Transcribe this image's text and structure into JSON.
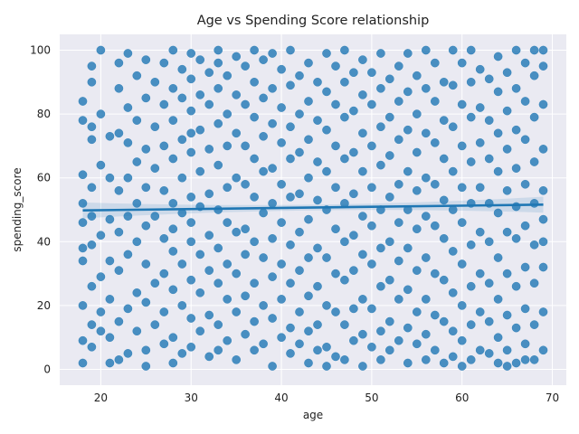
{
  "colors": {
    "background": "#ffffff",
    "plot_background": "#eaeaf2",
    "grid": "#ffffff",
    "points": "#1f77b4",
    "regression": "#1f77b4"
  },
  "chart_data": {
    "type": "scatter",
    "title": "Age vs Spending Score relationship",
    "xlabel": "age",
    "ylabel": "spending_score",
    "xlim": [
      15.45,
      71.55
    ],
    "ylim": [
      -4.95,
      104.95
    ],
    "xticks": [
      20,
      30,
      40,
      50,
      60,
      70
    ],
    "yticks": [
      0,
      20,
      40,
      60,
      80,
      100
    ],
    "grid": true,
    "legend": "none",
    "regression": {
      "x": [
        18,
        69
      ],
      "y": [
        49.8,
        51.6
      ],
      "ci_halfwidth_edge": 2.5,
      "ci_halfwidth_center": 0.9
    },
    "points": [
      [
        18,
        84
      ],
      [
        18,
        78
      ],
      [
        18,
        61
      ],
      [
        18,
        52
      ],
      [
        18,
        46
      ],
      [
        18,
        38
      ],
      [
        18,
        34
      ],
      [
        18,
        20
      ],
      [
        18,
        9
      ],
      [
        18,
        2
      ],
      [
        19,
        95
      ],
      [
        19,
        90
      ],
      [
        19,
        76
      ],
      [
        19,
        72
      ],
      [
        19,
        57
      ],
      [
        19,
        48
      ],
      [
        19,
        39
      ],
      [
        19,
        26
      ],
      [
        19,
        14
      ],
      [
        19,
        7
      ],
      [
        20,
        100
      ],
      [
        20,
        80
      ],
      [
        20,
        64
      ],
      [
        20,
        42
      ],
      [
        20,
        29
      ],
      [
        20,
        18
      ],
      [
        20,
        12
      ],
      [
        21,
        73
      ],
      [
        21,
        60
      ],
      [
        21,
        47
      ],
      [
        21,
        34
      ],
      [
        21,
        22
      ],
      [
        21,
        10
      ],
      [
        21,
        2
      ],
      [
        22,
        96
      ],
      [
        22,
        88
      ],
      [
        22,
        74
      ],
      [
        22,
        56
      ],
      [
        22,
        43
      ],
      [
        22,
        31
      ],
      [
        22,
        15
      ],
      [
        22,
        3
      ],
      [
        23,
        99
      ],
      [
        23,
        82
      ],
      [
        23,
        71
      ],
      [
        23,
        60
      ],
      [
        23,
        48
      ],
      [
        23,
        36
      ],
      [
        23,
        19
      ],
      [
        23,
        5
      ],
      [
        24,
        92
      ],
      [
        24,
        78
      ],
      [
        24,
        65
      ],
      [
        24,
        52
      ],
      [
        24,
        40
      ],
      [
        24,
        24
      ],
      [
        24,
        12
      ],
      [
        25,
        97
      ],
      [
        25,
        85
      ],
      [
        25,
        69
      ],
      [
        25,
        57
      ],
      [
        25,
        45
      ],
      [
        25,
        33
      ],
      [
        25,
        21
      ],
      [
        25,
        6
      ],
      [
        25,
        1
      ],
      [
        26,
        90
      ],
      [
        26,
        76
      ],
      [
        26,
        63
      ],
      [
        26,
        48
      ],
      [
        26,
        27
      ],
      [
        26,
        14
      ],
      [
        27,
        96
      ],
      [
        27,
        83
      ],
      [
        27,
        70
      ],
      [
        27,
        56
      ],
      [
        27,
        41
      ],
      [
        27,
        30
      ],
      [
        27,
        18
      ],
      [
        27,
        8
      ],
      [
        28,
        100
      ],
      [
        28,
        88
      ],
      [
        28,
        78
      ],
      [
        28,
        66
      ],
      [
        28,
        52
      ],
      [
        28,
        44
      ],
      [
        28,
        37
      ],
      [
        28,
        25
      ],
      [
        28,
        10
      ],
      [
        28,
        2
      ],
      [
        29,
        94
      ],
      [
        29,
        85
      ],
      [
        29,
        72
      ],
      [
        29,
        60
      ],
      [
        29,
        49
      ],
      [
        29,
        33
      ],
      [
        29,
        20
      ],
      [
        29,
        5
      ],
      [
        30,
        99
      ],
      [
        30,
        91
      ],
      [
        30,
        81
      ],
      [
        30,
        74
      ],
      [
        30,
        68
      ],
      [
        30,
        54
      ],
      [
        30,
        46
      ],
      [
        30,
        40
      ],
      [
        30,
        28
      ],
      [
        30,
        16
      ],
      [
        30,
        7
      ],
      [
        31,
        97
      ],
      [
        31,
        86
      ],
      [
        31,
        75
      ],
      [
        31,
        62
      ],
      [
        31,
        51
      ],
      [
        31,
        36
      ],
      [
        31,
        24
      ],
      [
        31,
        12
      ],
      [
        32,
        93
      ],
      [
        32,
        83
      ],
      [
        32,
        69
      ],
      [
        32,
        55
      ],
      [
        32,
        42
      ],
      [
        32,
        31
      ],
      [
        32,
        17
      ],
      [
        32,
        4
      ],
      [
        33,
        100
      ],
      [
        33,
        96
      ],
      [
        33,
        88
      ],
      [
        33,
        77
      ],
      [
        33,
        64
      ],
      [
        33,
        50
      ],
      [
        33,
        38
      ],
      [
        33,
        27
      ],
      [
        33,
        14
      ],
      [
        33,
        6
      ],
      [
        34,
        92
      ],
      [
        34,
        80
      ],
      [
        34,
        70
      ],
      [
        34,
        57
      ],
      [
        34,
        46
      ],
      [
        34,
        33
      ],
      [
        34,
        22
      ],
      [
        34,
        9
      ],
      [
        35,
        98
      ],
      [
        35,
        86
      ],
      [
        35,
        74
      ],
      [
        35,
        60
      ],
      [
        35,
        43
      ],
      [
        35,
        30
      ],
      [
        35,
        18
      ],
      [
        35,
        3
      ],
      [
        36,
        95
      ],
      [
        36,
        83
      ],
      [
        36,
        70
      ],
      [
        36,
        58
      ],
      [
        36,
        44
      ],
      [
        36,
        36
      ],
      [
        36,
        23
      ],
      [
        36,
        11
      ],
      [
        37,
        100
      ],
      [
        37,
        90
      ],
      [
        37,
        79
      ],
      [
        37,
        66
      ],
      [
        37,
        54
      ],
      [
        37,
        40
      ],
      [
        37,
        27
      ],
      [
        37,
        15
      ],
      [
        37,
        6
      ],
      [
        38,
        97
      ],
      [
        38,
        85
      ],
      [
        38,
        73
      ],
      [
        38,
        62
      ],
      [
        38,
        49
      ],
      [
        38,
        35
      ],
      [
        38,
        20
      ],
      [
        38,
        8
      ],
      [
        39,
        99
      ],
      [
        39,
        88
      ],
      [
        39,
        77
      ],
      [
        39,
        63
      ],
      [
        39,
        52
      ],
      [
        39,
        41
      ],
      [
        39,
        29
      ],
      [
        39,
        16
      ],
      [
        39,
        1
      ],
      [
        40,
        94
      ],
      [
        40,
        82
      ],
      [
        40,
        71
      ],
      [
        40,
        58
      ],
      [
        40,
        46
      ],
      [
        40,
        33
      ],
      [
        40,
        22
      ],
      [
        40,
        10
      ],
      [
        41,
        100
      ],
      [
        41,
        89
      ],
      [
        41,
        76
      ],
      [
        41,
        66
      ],
      [
        41,
        54
      ],
      [
        41,
        39
      ],
      [
        41,
        27
      ],
      [
        41,
        13
      ],
      [
        41,
        5
      ],
      [
        42,
        92
      ],
      [
        42,
        80
      ],
      [
        42,
        68
      ],
      [
        42,
        55
      ],
      [
        42,
        43
      ],
      [
        42,
        31
      ],
      [
        42,
        18
      ],
      [
        42,
        8
      ],
      [
        43,
        96
      ],
      [
        43,
        84
      ],
      [
        43,
        72
      ],
      [
        43,
        60
      ],
      [
        43,
        47
      ],
      [
        43,
        35
      ],
      [
        43,
        23
      ],
      [
        43,
        12
      ],
      [
        43,
        2
      ],
      [
        44,
        90
      ],
      [
        44,
        78
      ],
      [
        44,
        65
      ],
      [
        44,
        53
      ],
      [
        44,
        38
      ],
      [
        44,
        26
      ],
      [
        44,
        14
      ],
      [
        44,
        6
      ],
      [
        45,
        99
      ],
      [
        45,
        87
      ],
      [
        45,
        75
      ],
      [
        45,
        62
      ],
      [
        45,
        50
      ],
      [
        45,
        35
      ],
      [
        45,
        20
      ],
      [
        45,
        7
      ],
      [
        45,
        1
      ],
      [
        46,
        95
      ],
      [
        46,
        83
      ],
      [
        46,
        70
      ],
      [
        46,
        57
      ],
      [
        46,
        44
      ],
      [
        46,
        30
      ],
      [
        46,
        18
      ],
      [
        46,
        4
      ],
      [
        47,
        100
      ],
      [
        47,
        90
      ],
      [
        47,
        79
      ],
      [
        47,
        66
      ],
      [
        47,
        52
      ],
      [
        47,
        40
      ],
      [
        47,
        28
      ],
      [
        47,
        14
      ],
      [
        47,
        3
      ],
      [
        48,
        93
      ],
      [
        48,
        81
      ],
      [
        48,
        68
      ],
      [
        48,
        55
      ],
      [
        48,
        42
      ],
      [
        48,
        31
      ],
      [
        48,
        19
      ],
      [
        48,
        9
      ],
      [
        49,
        97
      ],
      [
        49,
        86
      ],
      [
        49,
        74
      ],
      [
        49,
        62
      ],
      [
        49,
        48
      ],
      [
        49,
        36
      ],
      [
        49,
        22
      ],
      [
        49,
        11
      ],
      [
        49,
        1
      ],
      [
        50,
        93
      ],
      [
        50,
        83
      ],
      [
        50,
        70
      ],
      [
        50,
        57
      ],
      [
        50,
        45
      ],
      [
        50,
        33
      ],
      [
        50,
        19
      ],
      [
        50,
        7
      ],
      [
        51,
        99
      ],
      [
        51,
        88
      ],
      [
        51,
        76
      ],
      [
        51,
        64
      ],
      [
        51,
        50
      ],
      [
        51,
        38
      ],
      [
        51,
        26
      ],
      [
        51,
        12
      ],
      [
        51,
        3
      ],
      [
        52,
        91
      ],
      [
        52,
        79
      ],
      [
        52,
        67
      ],
      [
        52,
        54
      ],
      [
        52,
        40
      ],
      [
        52,
        28
      ],
      [
        52,
        15
      ],
      [
        52,
        6
      ],
      [
        53,
        95
      ],
      [
        53,
        84
      ],
      [
        53,
        72
      ],
      [
        53,
        58
      ],
      [
        53,
        46
      ],
      [
        53,
        34
      ],
      [
        53,
        22
      ],
      [
        53,
        9
      ],
      [
        54,
        99
      ],
      [
        54,
        87
      ],
      [
        54,
        75
      ],
      [
        54,
        62
      ],
      [
        54,
        50
      ],
      [
        54,
        38
      ],
      [
        54,
        25
      ],
      [
        54,
        13
      ],
      [
        54,
        2
      ],
      [
        55,
        92
      ],
      [
        55,
        80
      ],
      [
        55,
        68
      ],
      [
        55,
        56
      ],
      [
        55,
        44
      ],
      [
        55,
        31
      ],
      [
        55,
        18
      ],
      [
        55,
        8
      ],
      [
        56,
        100
      ],
      [
        56,
        88
      ],
      [
        56,
        74
      ],
      [
        56,
        60
      ],
      [
        56,
        48
      ],
      [
        56,
        35
      ],
      [
        56,
        22
      ],
      [
        56,
        11
      ],
      [
        56,
        3
      ],
      [
        57,
        96
      ],
      [
        57,
        84
      ],
      [
        57,
        71
      ],
      [
        57,
        58
      ],
      [
        57,
        45
      ],
      [
        57,
        30
      ],
      [
        57,
        17
      ],
      [
        57,
        6
      ],
      [
        58,
        90
      ],
      [
        58,
        78
      ],
      [
        58,
        66
      ],
      [
        58,
        53
      ],
      [
        58,
        41
      ],
      [
        58,
        28
      ],
      [
        58,
        15
      ],
      [
        58,
        2
      ],
      [
        59,
        100
      ],
      [
        59,
        89
      ],
      [
        59,
        76
      ],
      [
        59,
        62
      ],
      [
        59,
        50
      ],
      [
        59,
        37
      ],
      [
        59,
        24
      ],
      [
        59,
        12
      ],
      [
        59,
        4
      ],
      [
        60,
        96
      ],
      [
        60,
        83
      ],
      [
        60,
        70
      ],
      [
        60,
        57
      ],
      [
        60,
        46
      ],
      [
        60,
        33
      ],
      [
        60,
        20
      ],
      [
        60,
        9
      ],
      [
        60,
        1
      ],
      [
        61,
        100
      ],
      [
        61,
        90
      ],
      [
        61,
        79
      ],
      [
        61,
        65
      ],
      [
        61,
        52
      ],
      [
        61,
        39
      ],
      [
        61,
        26
      ],
      [
        61,
        14
      ],
      [
        61,
        3
      ],
      [
        62,
        94
      ],
      [
        62,
        82
      ],
      [
        62,
        71
      ],
      [
        62,
        57
      ],
      [
        62,
        43
      ],
      [
        62,
        30
      ],
      [
        62,
        18
      ],
      [
        62,
        6
      ],
      [
        63,
        91
      ],
      [
        63,
        78
      ],
      [
        63,
        66
      ],
      [
        63,
        52
      ],
      [
        63,
        40
      ],
      [
        63,
        27
      ],
      [
        63,
        15
      ],
      [
        63,
        5
      ],
      [
        64,
        98
      ],
      [
        64,
        87
      ],
      [
        64,
        74
      ],
      [
        64,
        62
      ],
      [
        64,
        49
      ],
      [
        64,
        35
      ],
      [
        64,
        22
      ],
      [
        64,
        10
      ],
      [
        64,
        2
      ],
      [
        65,
        93
      ],
      [
        65,
        81
      ],
      [
        65,
        69
      ],
      [
        65,
        56
      ],
      [
        65,
        43
      ],
      [
        65,
        30
      ],
      [
        65,
        17
      ],
      [
        65,
        6
      ],
      [
        65,
        1
      ],
      [
        66,
        100
      ],
      [
        66,
        88
      ],
      [
        66,
        75
      ],
      [
        66,
        63
      ],
      [
        66,
        51
      ],
      [
        66,
        41
      ],
      [
        66,
        26
      ],
      [
        66,
        13
      ],
      [
        66,
        2
      ],
      [
        67,
        96
      ],
      [
        67,
        84
      ],
      [
        67,
        72
      ],
      [
        67,
        58
      ],
      [
        67,
        45
      ],
      [
        67,
        32
      ],
      [
        67,
        19
      ],
      [
        67,
        8
      ],
      [
        67,
        3
      ],
      [
        68,
        100
      ],
      [
        68,
        92
      ],
      [
        68,
        79
      ],
      [
        68,
        65
      ],
      [
        68,
        52
      ],
      [
        68,
        39
      ],
      [
        68,
        27
      ],
      [
        68,
        14
      ],
      [
        68,
        3
      ],
      [
        69,
        100
      ],
      [
        69,
        95
      ],
      [
        69,
        83
      ],
      [
        69,
        69
      ],
      [
        69,
        56
      ],
      [
        69,
        47
      ],
      [
        69,
        40
      ],
      [
        69,
        32
      ],
      [
        69,
        18
      ],
      [
        69,
        6
      ]
    ]
  }
}
